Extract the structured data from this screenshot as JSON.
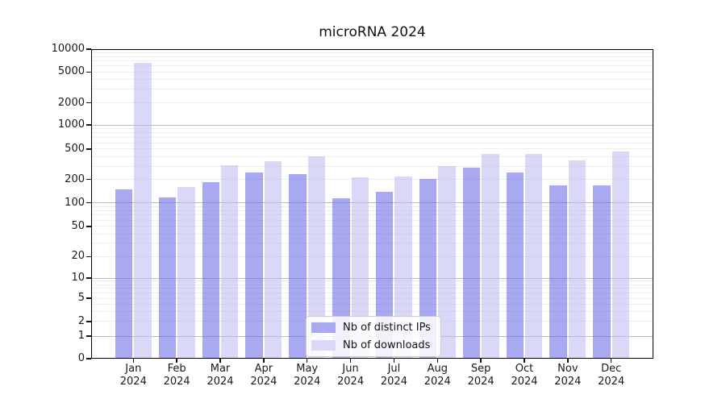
{
  "title": "microRNA 2024",
  "chart_data": {
    "type": "bar",
    "title": "microRNA 2024",
    "categories": [
      "Jan",
      "Feb",
      "Mar",
      "Apr",
      "May",
      "Jun",
      "Jul",
      "Aug",
      "Sep",
      "Oct",
      "Nov",
      "Dec"
    ],
    "x_year_label": "2024",
    "series": [
      {
        "name": "Nb of distinct IPs",
        "color": "#a9a9f2",
        "values": [
          150,
          117,
          185,
          245,
          235,
          115,
          140,
          205,
          285,
          245,
          170,
          170
        ]
      },
      {
        "name": "Nb of downloads",
        "color": "#d9d9f7",
        "values": [
          6650,
          160,
          310,
          345,
          400,
          215,
          220,
          300,
          435,
          435,
          355,
          460
        ]
      }
    ],
    "y_ticks": [
      0,
      1,
      2,
      5,
      10,
      20,
      50,
      100,
      200,
      500,
      1000,
      2000,
      5000,
      10000
    ],
    "yscale": "symlog",
    "ylim": [
      0,
      10000
    ],
    "grid": true,
    "legend_position": "lower center"
  }
}
